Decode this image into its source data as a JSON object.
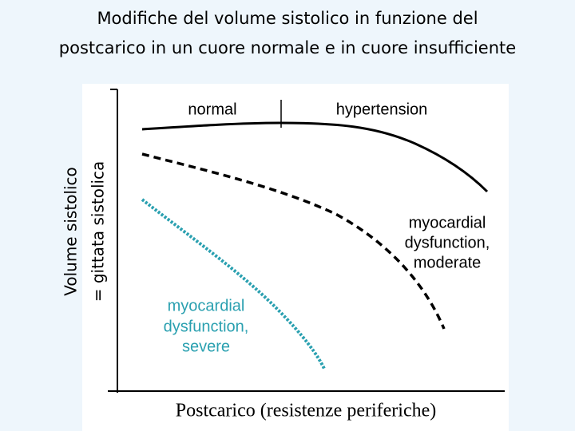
{
  "header": {
    "title_lines": [
      "Modifiche del volume sistolico in funzione del",
      "postcarico in un cuore normale e in cuore insufficiente"
    ]
  },
  "axes": {
    "y_label_lines": [
      "Volume sistolico",
      "= gittata sistolica"
    ],
    "x_label": "Postcarico (resistenze periferiche)"
  },
  "curves": [
    {
      "labels": [
        "normal",
        "hypertension"
      ]
    },
    {
      "labels": [
        "myocardial",
        "dysfunction,",
        "moderate"
      ]
    },
    {
      "labels": [
        "myocardial",
        "dysfunction,",
        "severe"
      ]
    }
  ]
}
